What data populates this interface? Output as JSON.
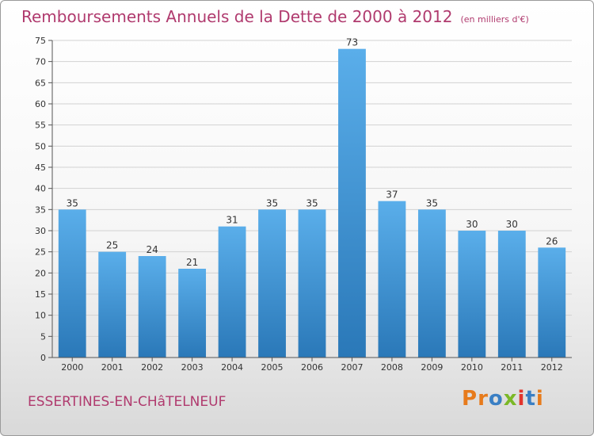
{
  "header": {
    "title": "Remboursements Annuels de la Dette de 2000 à 2012",
    "unit": "(en milliers d'€)"
  },
  "footer": {
    "commune": "ESSERTINES-EN-CHâTELNEUF",
    "logo": "Proxiti",
    "logo_colors": [
      "#e77b1c",
      "#e77b1c",
      "#3a7fc4",
      "#7bb827",
      "#e2352d",
      "#3a7fc4",
      "#e77b1c"
    ]
  },
  "chart_data": {
    "type": "bar",
    "categories": [
      "2000",
      "2001",
      "2002",
      "2003",
      "2004",
      "2005",
      "2006",
      "2007",
      "2008",
      "2009",
      "2010",
      "2011",
      "2012"
    ],
    "values": [
      35,
      25,
      24,
      21,
      31,
      35,
      35,
      73,
      37,
      35,
      30,
      30,
      26
    ],
    "ylim": [
      0,
      75
    ],
    "yticks": [
      0,
      5,
      10,
      15,
      20,
      25,
      30,
      35,
      40,
      45,
      50,
      55,
      60,
      65,
      70,
      75
    ],
    "grid": true,
    "bar_color_top": "#5aaeea",
    "bar_color_bottom": "#2a78b8"
  }
}
